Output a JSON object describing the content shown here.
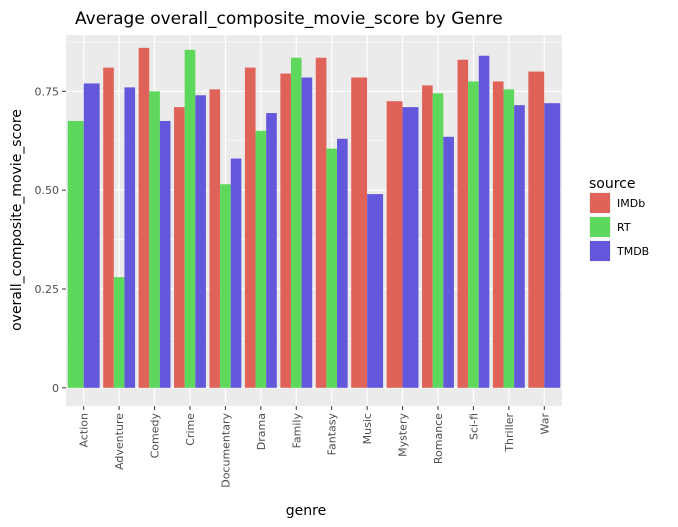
{
  "chart_data": {
    "type": "bar",
    "title": "Average overall_composite_movie_score by Genre",
    "xlabel": "genre",
    "ylabel": "overall_composite_movie_score",
    "ylim": [
      -0.046,
      0.8925
    ],
    "yticks": [
      0,
      0.25,
      0.5,
      0.75
    ],
    "yticklabels": [
      "0",
      "0.25",
      "0.50",
      "0.75"
    ],
    "grid": true,
    "legend_title": "source",
    "legend_position": "right",
    "categories": [
      "Action",
      "Adventure",
      "Comedy",
      "Crime",
      "Documentary",
      "Drama",
      "Family",
      "Fantasy",
      "Music",
      "Mystery",
      "Romance",
      "Sci-fi",
      "Thriller",
      "War"
    ],
    "series": [
      {
        "name": "IMDb",
        "color": "#e0635a",
        "values": [
          null,
          0.81,
          0.86,
          0.71,
          0.755,
          0.81,
          0.795,
          0.835,
          0.785,
          0.725,
          0.765,
          0.83,
          0.775,
          0.8
        ]
      },
      {
        "name": "RT",
        "color": "#5ed85c",
        "values": [
          0.675,
          0.28,
          0.75,
          0.855,
          0.515,
          0.65,
          0.835,
          0.605,
          null,
          null,
          0.745,
          0.775,
          0.755,
          null
        ]
      },
      {
        "name": "TMDB",
        "color": "#6358dc",
        "values": [
          0.77,
          0.76,
          0.675,
          0.74,
          0.58,
          0.695,
          0.785,
          0.63,
          0.49,
          0.71,
          0.635,
          0.84,
          0.715,
          0.72
        ]
      }
    ]
  }
}
